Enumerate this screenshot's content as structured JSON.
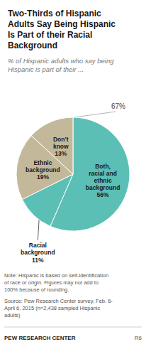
{
  "chart_data": {
    "type": "pie",
    "title": "Two-Thirds of Hispanic\nAdults Say Being Hispanic\nIs Part of their Racial\nBackground",
    "subtitle": "% of Hispanic adults who say being\nHispanic is part of their ...",
    "categories": [
      "Both,\nracial and\nethnic\nbackground",
      "Racial\nbackground",
      "Ethnic\nbackground",
      "Don’t\nknow"
    ],
    "values": [
      56,
      11,
      19,
      13
    ],
    "value_labels": [
      "56%",
      "11%",
      "19%",
      "13%"
    ],
    "colors": [
      "#5bbfb5",
      "#5bbfb5",
      "#c3b99a",
      "#c3b99a"
    ],
    "data_labels": true,
    "annotation": "67%",
    "note": "Note: Hispanic is based on self-identification\nof race or origin. Figures may not add to\n100% because of rounding.",
    "source": "Source: Pew Research Center survey, Feb. 6-\nApril 6, 2015 (n=2,438 sampled Hispanic\nadults)",
    "footer_left": "PEW RESEARCH CENTER",
    "footer_right": "R6"
  }
}
